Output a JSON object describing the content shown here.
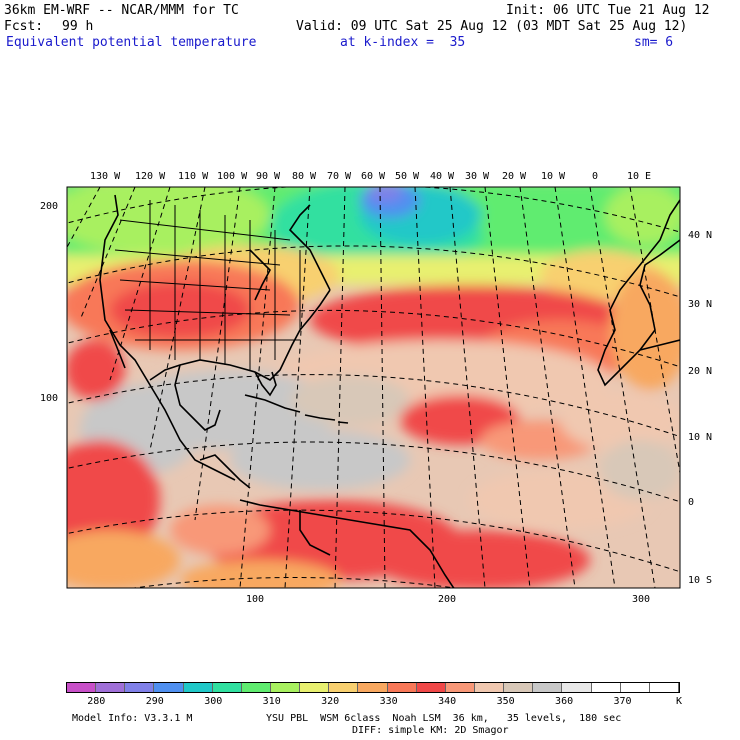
{
  "header": {
    "title_left": "36km EM-WRF -- NCAR/MMM for TC",
    "init": "Init: 06 UTC Tue 21 Aug 12",
    "fcst_label": "Fcst:",
    "fcst_value": "99 h",
    "valid": "Valid: 09 UTC Sat 25 Aug 12 (03 MDT Sat 25 Aug 12)",
    "field_name": "Equivalent potential temperature",
    "kindex": "at k-index =  35",
    "smooth": "sm= 6"
  },
  "top_longitudes": [
    "130 W",
    "120 W",
    "110 W",
    "100 W",
    "90 W",
    "80 W",
    "70 W",
    "60 W",
    "50 W",
    "40 W",
    "30 W",
    "20 W",
    "10 W",
    "0",
    "10 E"
  ],
  "right_latitudes": [
    "40 N",
    "30 N",
    "20 N",
    "10 N",
    "0",
    "10 S"
  ],
  "grid_y_labels": [
    "200",
    "100"
  ],
  "grid_x_labels": [
    "100",
    "200",
    "300"
  ],
  "colorbar": {
    "colors": [
      "#c850c8",
      "#a070d8",
      "#8080e8",
      "#5090f0",
      "#20c8c8",
      "#30e0a0",
      "#60ec70",
      "#a8f060",
      "#e8f070",
      "#f8d070",
      "#f8a860",
      "#f87858",
      "#f04848",
      "#f89878",
      "#f0c8b0",
      "#d8c8b8",
      "#c8c8c8",
      "#e8e8e8",
      "#ffffff",
      "#ffffff",
      "#ffffff"
    ],
    "labels": [
      "280",
      "290",
      "300",
      "310",
      "320",
      "330",
      "340",
      "350",
      "360",
      "370"
    ],
    "unit": "K"
  },
  "footer": {
    "model_info": "Model Info: V3.3.1 M",
    "physics1": "YSU PBL  WSM 6class  Noah LSM  36 km,   35 levels,  180 sec",
    "physics2": "DIFF: simple KM: 2D Smagor"
  }
}
